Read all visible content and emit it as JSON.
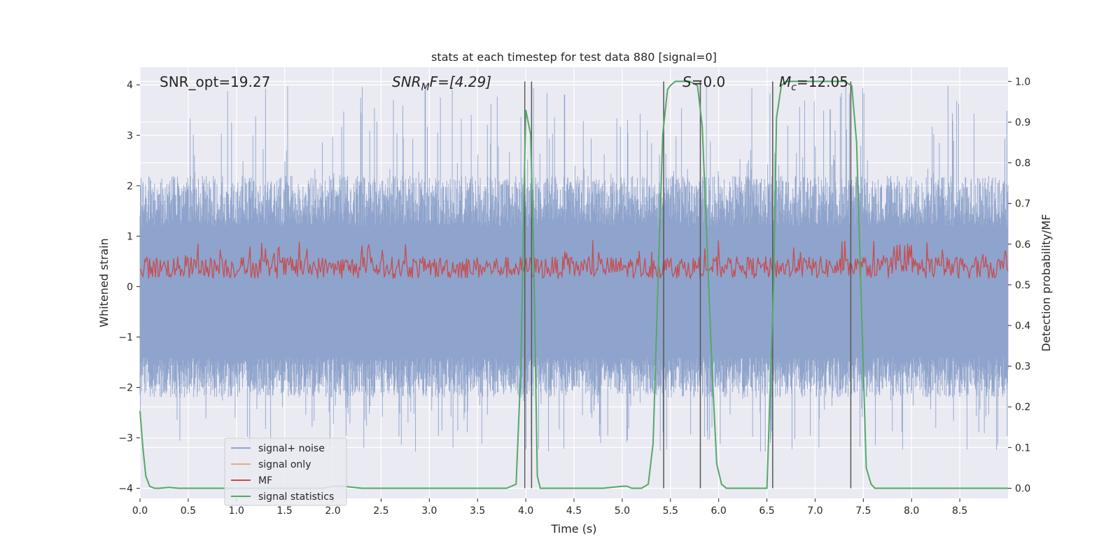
{
  "chart_data": {
    "type": "line",
    "title": "stats at each timestep for test data 880 [signal=0]",
    "xlabel": "Time (s)",
    "ylabel": "Whitened strain",
    "ylabel_right": "Detection probability/MF",
    "xlim": [
      0.0,
      9.0
    ],
    "ylim": [
      -4.2,
      4.35
    ],
    "ylim_right": [
      -0.025,
      1.035
    ],
    "xticks": [
      "0.0",
      "0.5",
      "1.0",
      "1.5",
      "2.0",
      "2.5",
      "3.0",
      "3.5",
      "4.0",
      "4.5",
      "5.0",
      "5.5",
      "6.0",
      "6.5",
      "7.0",
      "7.5",
      "8.0",
      "8.5"
    ],
    "yticks": [
      "4",
      "3",
      "2",
      "1",
      "0",
      "−1",
      "−2",
      "−3",
      "−4"
    ],
    "yticks_right": [
      "1.0",
      "0.9",
      "0.8",
      "0.7",
      "0.6",
      "0.5",
      "0.4",
      "0.3",
      "0.2",
      "0.1",
      "0.0"
    ],
    "grid": true,
    "legend_position": "lower-left",
    "annotations": {
      "snr_opt": "SNR_opt=19.27",
      "snr_mf_base": "SNR",
      "snr_mf_sub": "M",
      "snr_mf_rest": "F=[4.29]",
      "s_name": "S",
      "s_value": "=0.0",
      "mc_base": "M",
      "mc_sub": "c",
      "mc_value": "=12.05"
    },
    "series": [
      {
        "name": "signal+ noise",
        "color": "#8fa4cc",
        "axis": "left",
        "approx_range": [
          -3.3,
          4.0
        ]
      },
      {
        "name": "signal only",
        "color": "#e8a98a",
        "axis": "left",
        "values": []
      },
      {
        "name": "MF",
        "color": "#c44e52",
        "axis": "right",
        "approx_range": [
          0.49,
          0.61
        ]
      },
      {
        "name": "signal statistics",
        "color": "#55a868",
        "axis": "right",
        "x": [
          0.0,
          0.03,
          0.06,
          0.1,
          0.15,
          0.2,
          0.3,
          0.4,
          0.5,
          0.7,
          1.0,
          1.5,
          1.9,
          2.0,
          2.1,
          2.3,
          2.8,
          3.3,
          3.8,
          3.9,
          3.95,
          3.98,
          4.0,
          4.05,
          4.08,
          4.12,
          4.15,
          4.2,
          4.4,
          4.8,
          5.0,
          5.05,
          5.1,
          5.2,
          5.27,
          5.32,
          5.37,
          5.42,
          5.47,
          5.5,
          5.55,
          5.6,
          5.7,
          5.78,
          5.83,
          5.88,
          5.93,
          5.98,
          6.03,
          6.08,
          6.13,
          6.2,
          6.3,
          6.5,
          6.57,
          6.6,
          6.65,
          6.7,
          6.75,
          7.0,
          7.3,
          7.38,
          7.43,
          7.48,
          7.53,
          7.58,
          7.62,
          7.7,
          8.0,
          8.5,
          9.0
        ],
        "y": [
          0.19,
          0.1,
          0.03,
          0.005,
          0.0,
          0.0,
          0.002,
          0.0,
          0.0,
          0.0,
          0.0,
          0.0,
          0.0,
          0.005,
          0.005,
          0.0,
          0.0,
          0.0,
          0.0,
          0.01,
          0.3,
          0.7,
          0.93,
          0.87,
          0.6,
          0.03,
          0.0,
          0.0,
          0.0,
          0.0,
          0.005,
          0.005,
          0.0,
          0.0,
          0.01,
          0.11,
          0.5,
          0.87,
          0.98,
          0.99,
          1.0,
          1.0,
          1.0,
          0.99,
          0.89,
          0.6,
          0.3,
          0.06,
          0.01,
          0.0,
          0.0,
          0.0,
          0.0,
          0.0,
          0.5,
          0.91,
          0.99,
          1.0,
          1.0,
          1.0,
          1.0,
          0.99,
          0.85,
          0.45,
          0.05,
          0.01,
          0.0,
          0.0,
          0.0,
          0.0,
          0.0
        ]
      }
    ],
    "vertical_lines_x": [
      3.99,
      4.06,
      5.43,
      5.81,
      6.56,
      7.37
    ],
    "vertical_lines_color": "#555555"
  }
}
